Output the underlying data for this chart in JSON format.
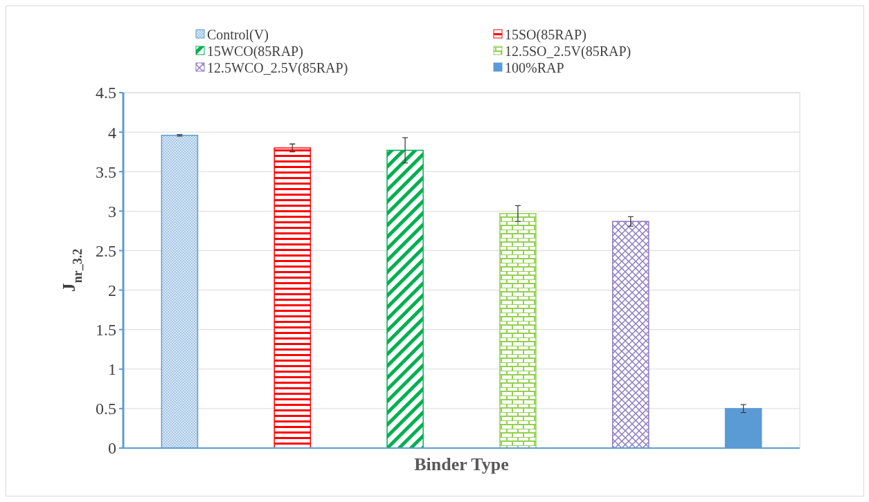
{
  "chart_data": {
    "type": "bar",
    "xlabel": "Binder Type",
    "ylabel": "J$_{nr_3.2}$",
    "categories": [
      null,
      null,
      null,
      null,
      null,
      null
    ],
    "series": [
      {
        "name": "Control(V)",
        "color": "#5b9bd5",
        "values": [
          3.96,
          null,
          null,
          null,
          null,
          null
        ],
        "errors": [
          0.01,
          null,
          null,
          null,
          null,
          null
        ]
      },
      {
        "name": "15SO(85RAP)",
        "color": "#ff0000",
        "values": [
          null,
          3.8,
          null,
          null,
          null,
          null
        ],
        "errors": [
          null,
          0.05,
          null,
          null,
          null,
          null
        ]
      },
      {
        "name": "15WCO(85RAP)",
        "color": "#00b050",
        "values": [
          null,
          null,
          3.77,
          null,
          null,
          null
        ],
        "errors": [
          null,
          null,
          0.16,
          null,
          null,
          null
        ]
      },
      {
        "name": "12.5SO_2.5V(85RAP)",
        "color": "#92d050",
        "values": [
          null,
          null,
          null,
          2.97,
          null,
          null
        ],
        "errors": [
          null,
          null,
          null,
          0.1,
          null,
          null
        ]
      },
      {
        "name": "12.5WCO_2.5V(85RAP)",
        "color": "#8e7cc3",
        "values": [
          null,
          null,
          null,
          null,
          2.87,
          null
        ],
        "errors": [
          null,
          null,
          null,
          null,
          0.06,
          null
        ]
      },
      {
        "name": "100%RAP",
        "color": "#5b9bd5",
        "values": [
          null,
          null,
          null,
          null,
          null,
          0.5
        ],
        "errors": [
          null,
          null,
          null,
          null,
          null,
          0.05
        ]
      }
    ],
    "ylim": [
      0,
      4.5
    ],
    "yticks": [
      0,
      0.5,
      1,
      1.5,
      2,
      2.5,
      3,
      3.5,
      4,
      4.5
    ],
    "grid": "y",
    "legend": "top"
  }
}
